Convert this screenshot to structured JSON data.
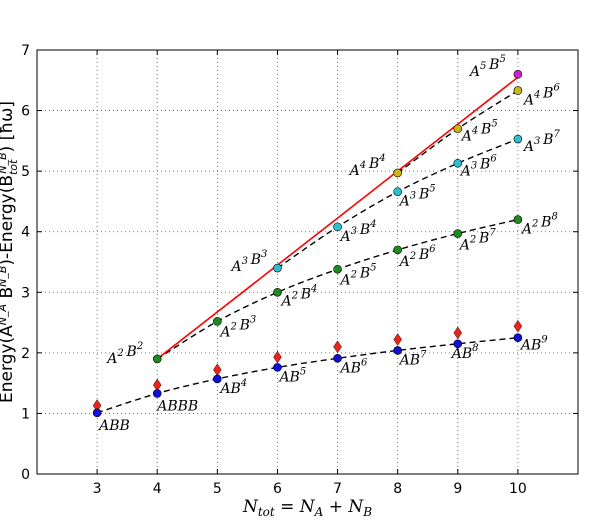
{
  "chart_data": {
    "type": "scatter",
    "xlim": [
      2,
      11
    ],
    "ylim": [
      0,
      7
    ],
    "x_ticks": [
      3,
      4,
      5,
      6,
      7,
      8,
      9,
      10
    ],
    "y_ticks": [
      0,
      1,
      2,
      3,
      4,
      5,
      6,
      7
    ],
    "grid": true,
    "xlabel": "N_tot = N_A + N_B",
    "ylabel": "Energy(A^{N_A} B^{N_B})-Energy(B_tot^{N_B}) [ħω]",
    "series": [
      {
        "marker": "diamond",
        "color": "#e8231b",
        "points": [
          [
            3,
            1.13
          ],
          [
            4,
            1.47
          ],
          [
            5,
            1.72
          ],
          [
            6,
            1.93
          ],
          [
            7,
            2.1
          ],
          [
            8,
            2.22
          ],
          [
            9,
            2.33
          ],
          [
            10,
            2.44
          ]
        ]
      },
      {
        "marker": "circle",
        "color": "#1010d8",
        "points": [
          [
            3,
            1.01
          ],
          [
            4,
            1.33
          ],
          [
            5,
            1.57
          ],
          [
            6,
            1.76
          ],
          [
            7,
            1.91
          ],
          [
            8,
            2.04
          ],
          [
            9,
            2.15
          ],
          [
            10,
            2.25
          ]
        ],
        "labels": [
          "ABB",
          "ABBB",
          "AB^4",
          "AB^5",
          "AB^6",
          "AB^7",
          "AB^8",
          "AB^9"
        ]
      },
      {
        "marker": "circle",
        "color": "#1f8a1f",
        "points": [
          [
            4,
            1.9
          ],
          [
            5,
            2.52
          ],
          [
            6,
            3.0
          ],
          [
            7,
            3.38
          ],
          [
            8,
            3.7
          ],
          [
            9,
            3.97
          ],
          [
            10,
            4.2
          ]
        ],
        "labels": [
          "A^2 B^2",
          "A^2 B^3",
          "A^2 B^4",
          "A^2 B^5",
          "A^2 B^6",
          "A^2 B^7",
          "A^2 B^8"
        ]
      },
      {
        "marker": "circle",
        "color": "#2ec0d0",
        "points": [
          [
            6,
            3.4
          ],
          [
            7,
            4.08
          ],
          [
            8,
            4.66
          ],
          [
            9,
            5.13
          ],
          [
            10,
            5.53
          ]
        ],
        "labels": [
          "A^3 B^3",
          "A^3 B^4",
          "A^3 B^5",
          "A^3 B^6",
          "A^3 B^7"
        ]
      },
      {
        "marker": "circle",
        "color": "#c8b81a",
        "points": [
          [
            8,
            4.97
          ],
          [
            9,
            5.7
          ],
          [
            10,
            6.33
          ]
        ],
        "labels": [
          "A^4 B^4",
          "A^4 B^5",
          "A^4 B^6"
        ]
      },
      {
        "marker": "circle",
        "color": "#cc22cc",
        "points": [
          [
            10,
            6.6
          ]
        ],
        "labels": [
          "A^5 B^5"
        ]
      }
    ],
    "fit_lines": [
      {
        "style": "dashed",
        "color": "#000000",
        "points": [
          [
            3,
            1.01
          ],
          [
            4,
            1.33
          ],
          [
            5,
            1.57
          ],
          [
            6,
            1.76
          ],
          [
            7,
            1.91
          ],
          [
            8,
            2.04
          ],
          [
            9,
            2.15
          ],
          [
            10,
            2.25
          ]
        ]
      },
      {
        "style": "dashed",
        "color": "#000000",
        "points": [
          [
            4,
            1.9
          ],
          [
            5,
            2.52
          ],
          [
            6,
            3.0
          ],
          [
            7,
            3.38
          ],
          [
            8,
            3.7
          ],
          [
            9,
            3.97
          ],
          [
            10,
            4.2
          ]
        ]
      },
      {
        "style": "dashed",
        "color": "#000000",
        "points": [
          [
            6,
            3.4
          ],
          [
            7,
            4.08
          ],
          [
            8,
            4.66
          ],
          [
            9,
            5.13
          ],
          [
            10,
            5.53
          ]
        ]
      },
      {
        "style": "dashed",
        "color": "#000000",
        "points": [
          [
            8,
            4.97
          ],
          [
            9,
            5.7
          ],
          [
            10,
            6.33
          ]
        ]
      },
      {
        "style": "solid",
        "color": "#ff0000",
        "points": [
          [
            4,
            1.9
          ],
          [
            10,
            6.55
          ]
        ]
      }
    ]
  }
}
